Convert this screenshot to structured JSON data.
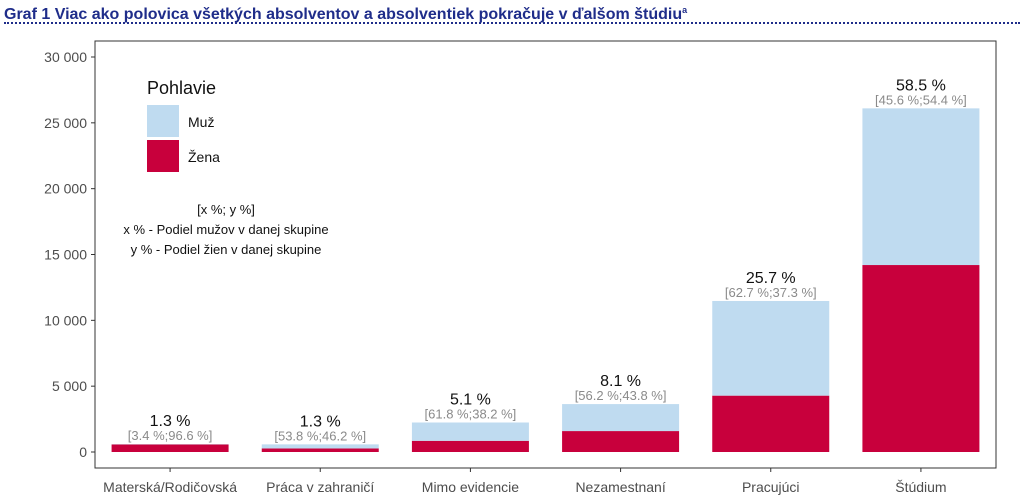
{
  "page": {
    "title": "Graf 1 Viac ako polovica všetkých absolventov a absolventiek pokračuje v ďalšom štúdiu",
    "title_superscript": "a"
  },
  "chart_data": {
    "type": "bar",
    "stacked": true,
    "title": "",
    "xlabel": "",
    "ylabel": "",
    "ylim": [
      0,
      30000
    ],
    "yticks": [
      0,
      5000,
      10000,
      15000,
      20000,
      25000,
      30000
    ],
    "ytick_labels": [
      "0",
      "5 000",
      "10 000",
      "15 000",
      "20 000",
      "25 000",
      "30 000"
    ],
    "grid": false,
    "categories": [
      "Materská/Rodičovská",
      "Práca v zahraničí",
      "Mimo evidencie",
      "Nezamestnaní",
      "Pracujúci",
      "Štúdium"
    ],
    "series": [
      {
        "name": "Žena",
        "color": "#c8003c",
        "values": [
          570,
          270,
          850,
          1590,
          4280,
          14200
        ]
      },
      {
        "name": "Muž",
        "color": "#bfdbf0",
        "values": [
          20,
          310,
          1390,
          2050,
          7190,
          11900
        ]
      }
    ],
    "annotations": {
      "percent": [
        "1.3 %",
        "1.3 %",
        "5.1 %",
        "8.1 %",
        "25.7 %",
        "58.5 %"
      ],
      "split": [
        "[3.4 %;96.6 %]",
        "[53.8 %;46.2 %]",
        "[61.8 %;38.2 %]",
        "[56.2 %;43.8 %]",
        "[62.7 %;37.3 %]",
        "[45.6 %;54.4 %]"
      ]
    },
    "legend": {
      "title": "Pohlavie",
      "position": "top-left",
      "items": [
        {
          "label": "Muž",
          "color": "#bfdbf0"
        },
        {
          "label": "Žena",
          "color": "#c8003c"
        }
      ]
    },
    "note_lines": [
      "[x %; y %]",
      "x % - Podiel mužov v danej skupine",
      "y % - Podiel žien v danej skupine"
    ]
  }
}
